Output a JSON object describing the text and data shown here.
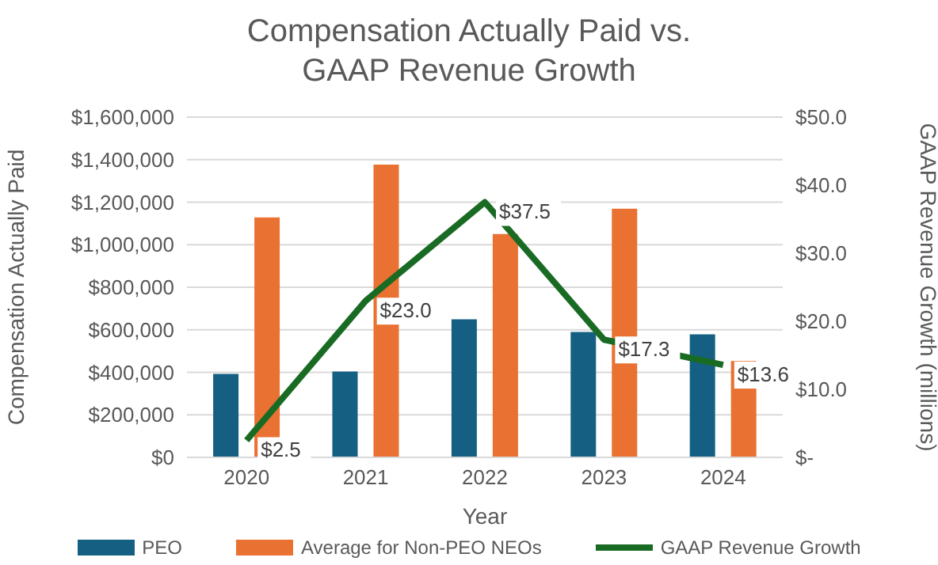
{
  "chart_data": {
    "type": "bar",
    "title": "Compensation Actually Paid vs.\nGAAP Revenue Growth",
    "xlabel": "Year",
    "ylabel": "Compensation Actually Paid",
    "y2label": "GAAP Revenue Growth (millions)",
    "categories": [
      "2020",
      "2021",
      "2022",
      "2023",
      "2024"
    ],
    "series": [
      {
        "name": "PEO",
        "color": "#156082",
        "values": [
          393000,
          404000,
          649000,
          590000,
          579000
        ]
      },
      {
        "name": "Average for Non-PEO NEOs",
        "color": "#e97132",
        "values": [
          1128000,
          1377000,
          1050000,
          1169000,
          453000
        ]
      },
      {
        "type": "line",
        "name": "GAAP Revenue Growth",
        "color": "#196b24",
        "axis": "y2",
        "values": [
          2.5,
          23.0,
          37.5,
          17.3,
          13.6
        ],
        "value_labels": [
          "$2.5",
          "$23.0",
          "$37.5",
          "$17.3",
          "$13.6"
        ]
      }
    ],
    "ylim": [
      0,
      1600000
    ],
    "yticks": [
      {
        "value": 0,
        "label": "$0"
      },
      {
        "value": 200000,
        "label": "$200,000"
      },
      {
        "value": 400000,
        "label": "$400,000"
      },
      {
        "value": 600000,
        "label": "$600,000"
      },
      {
        "value": 800000,
        "label": "$800,000"
      },
      {
        "value": 1000000,
        "label": "$1,000,000"
      },
      {
        "value": 1200000,
        "label": "$1,200,000"
      },
      {
        "value": 1400000,
        "label": "$1,400,000"
      },
      {
        "value": 1600000,
        "label": "$1,600,000"
      }
    ],
    "y2lim": [
      0,
      50
    ],
    "y2ticks": [
      {
        "value": 0,
        "label": "$-"
      },
      {
        "value": 10,
        "label": "$10.0"
      },
      {
        "value": 20,
        "label": "$20.0"
      },
      {
        "value": 30,
        "label": "$30.0"
      },
      {
        "value": 40,
        "label": "$40.0"
      },
      {
        "value": 50,
        "label": "$50.0"
      }
    ],
    "grid": "y",
    "legend": "bottom",
    "marker": "none",
    "line_style": "solid"
  }
}
